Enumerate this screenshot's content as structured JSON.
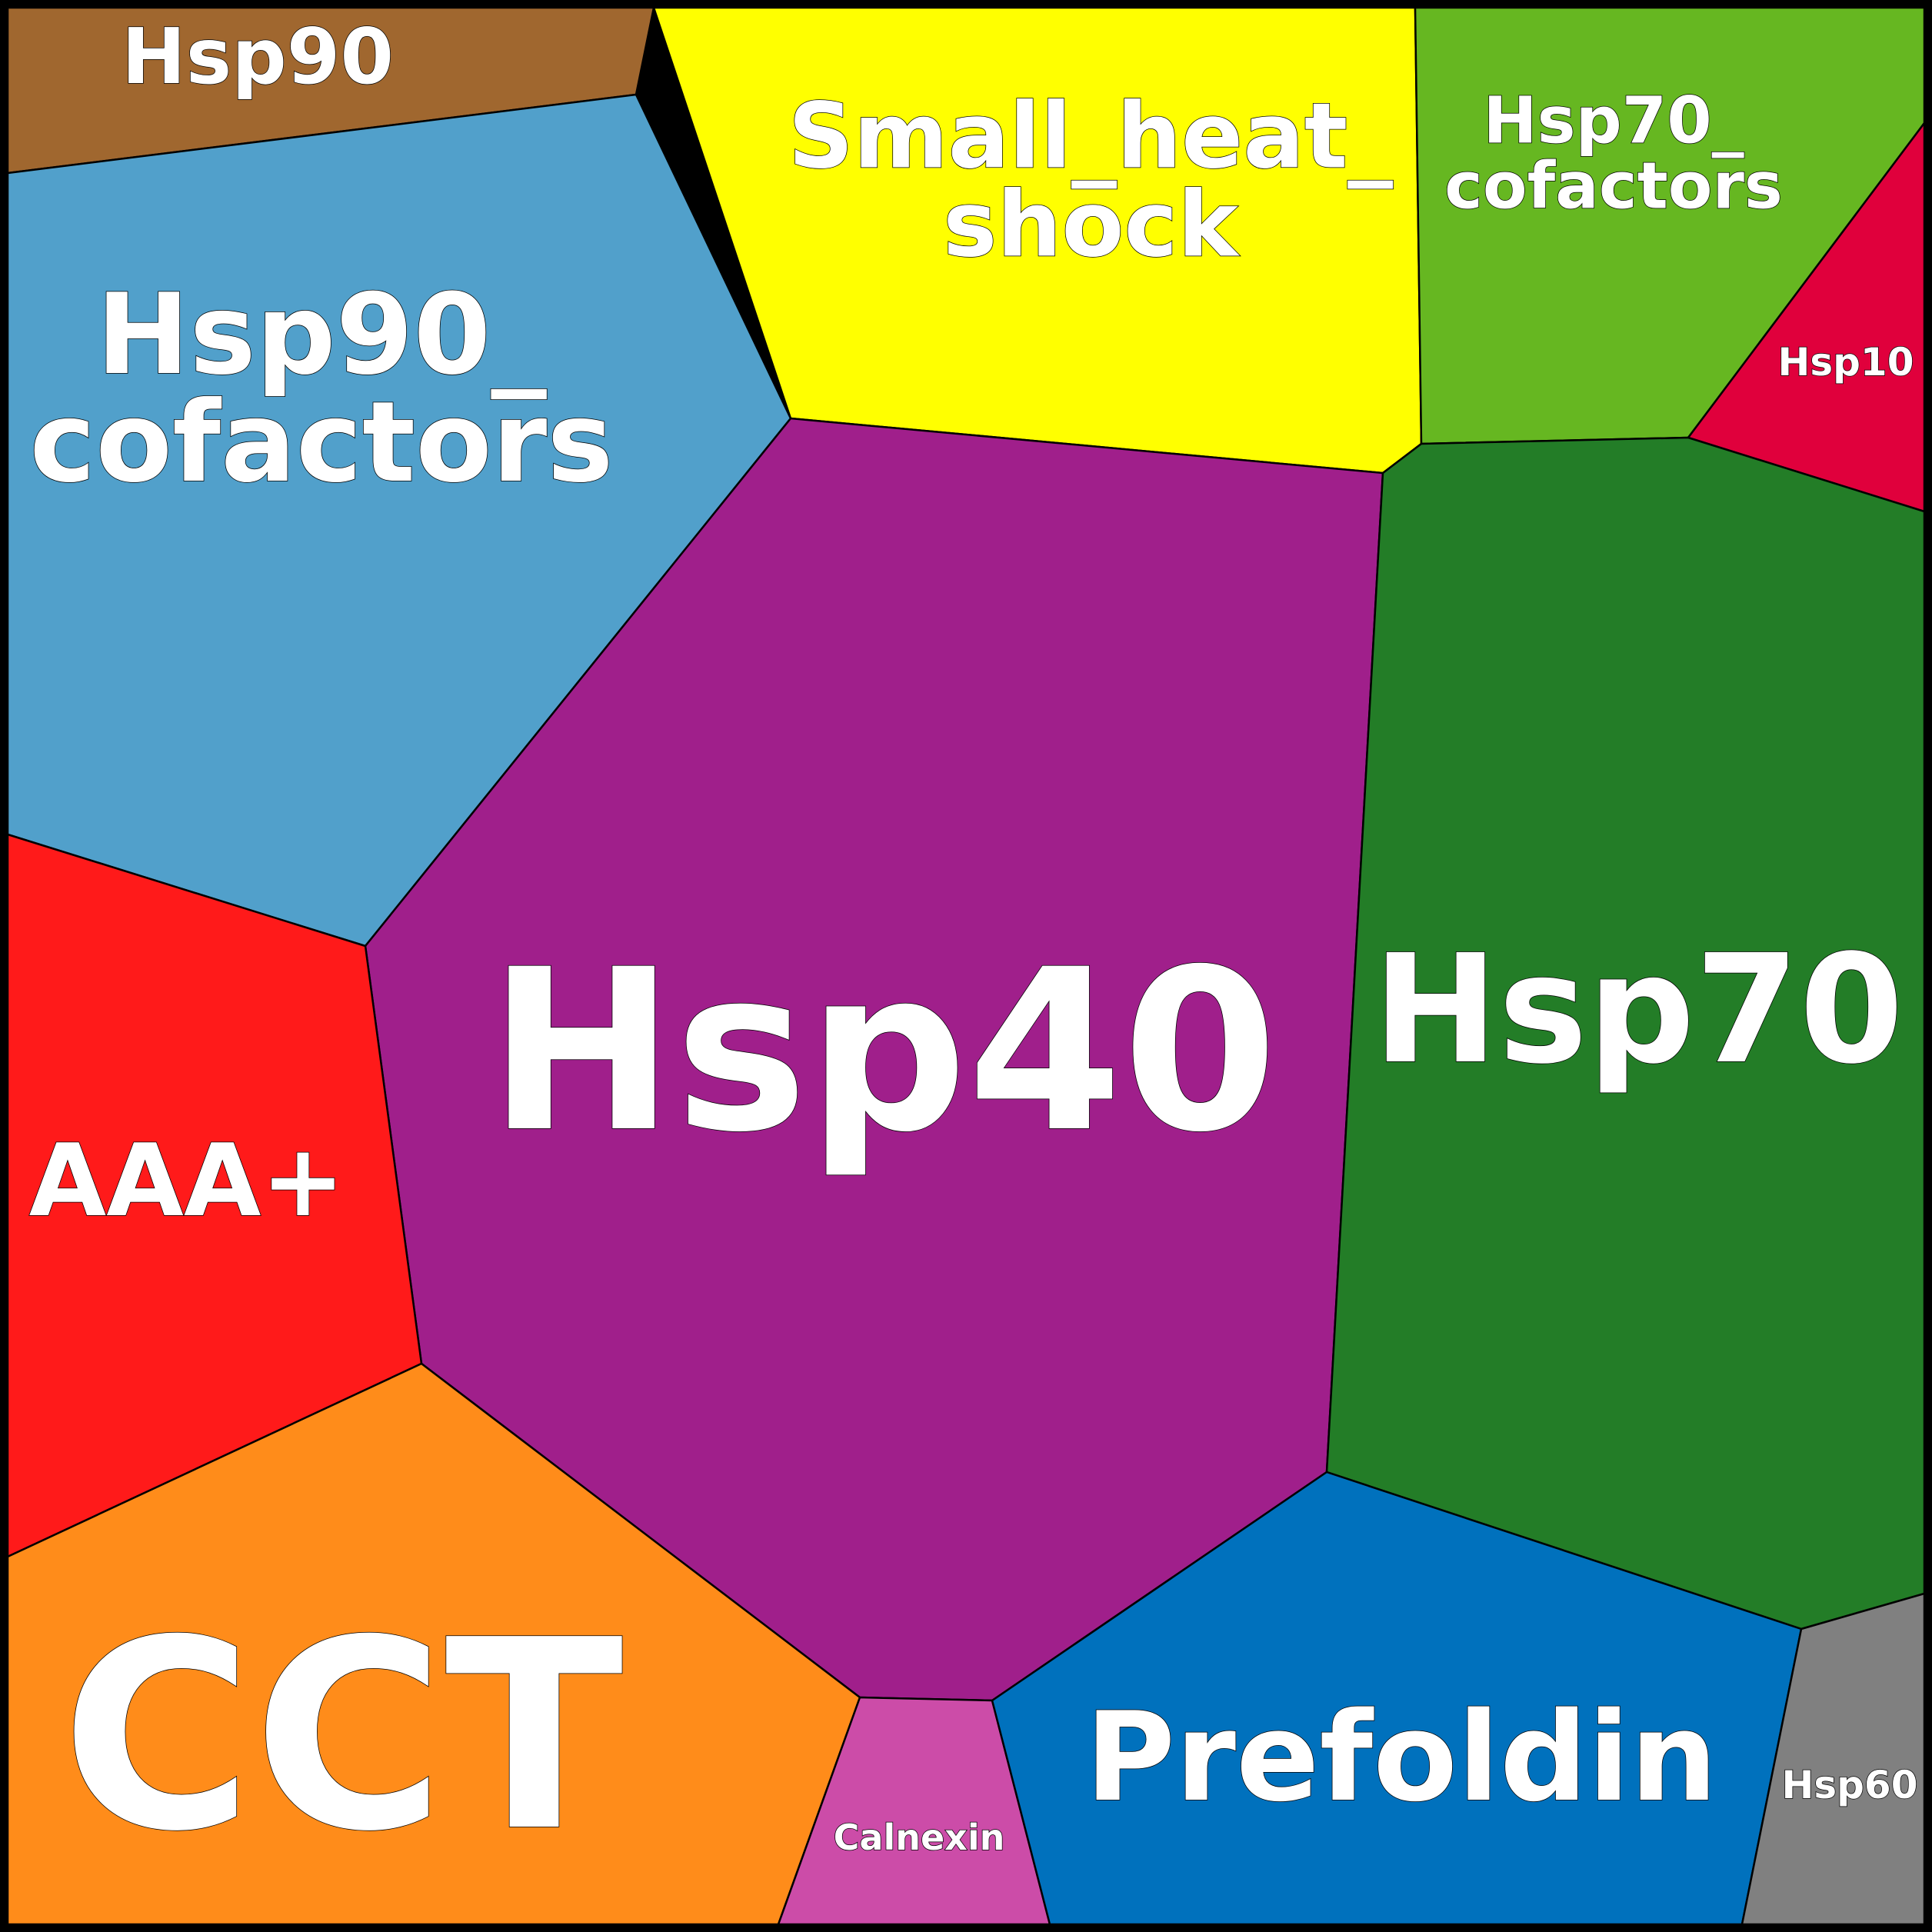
{
  "cells": [
    {
      "id": "hsp90",
      "label_lines": [
        "Hsp90"
      ],
      "color": "#a0672f"
    },
    {
      "id": "hsp90-cofactors",
      "label_lines": [
        "Hsp90_",
        "cofactors"
      ],
      "color": "#51a0cb"
    },
    {
      "id": "small-heat-shock",
      "label_lines": [
        "Small_heat_",
        "shock"
      ],
      "color": "#ffff00"
    },
    {
      "id": "hsp70-cofactors",
      "label_lines": [
        "Hsp70_",
        "cofactors"
      ],
      "color": "#66b721"
    },
    {
      "id": "hsp10",
      "label_lines": [
        "Hsp10"
      ],
      "color": "#e0003c"
    },
    {
      "id": "hsp40",
      "label_lines": [
        "Hsp40"
      ],
      "color": "#a01f8b"
    },
    {
      "id": "hsp70",
      "label_lines": [
        "Hsp70"
      ],
      "color": "#237d27"
    },
    {
      "id": "aaa-plus",
      "label_lines": [
        "AAA+"
      ],
      "color": "#ff1a1a"
    },
    {
      "id": "cct",
      "label_lines": [
        "CCT"
      ],
      "color": "#ff8c1a"
    },
    {
      "id": "calnexin",
      "label_lines": [
        "Calnexin"
      ],
      "color": "#cc4ca8"
    },
    {
      "id": "prefoldin",
      "label_lines": [
        "Prefoldin"
      ],
      "color": "#0071bd"
    },
    {
      "id": "hsp60",
      "label_lines": [
        "Hsp60"
      ],
      "color": "#808080"
    }
  ]
}
